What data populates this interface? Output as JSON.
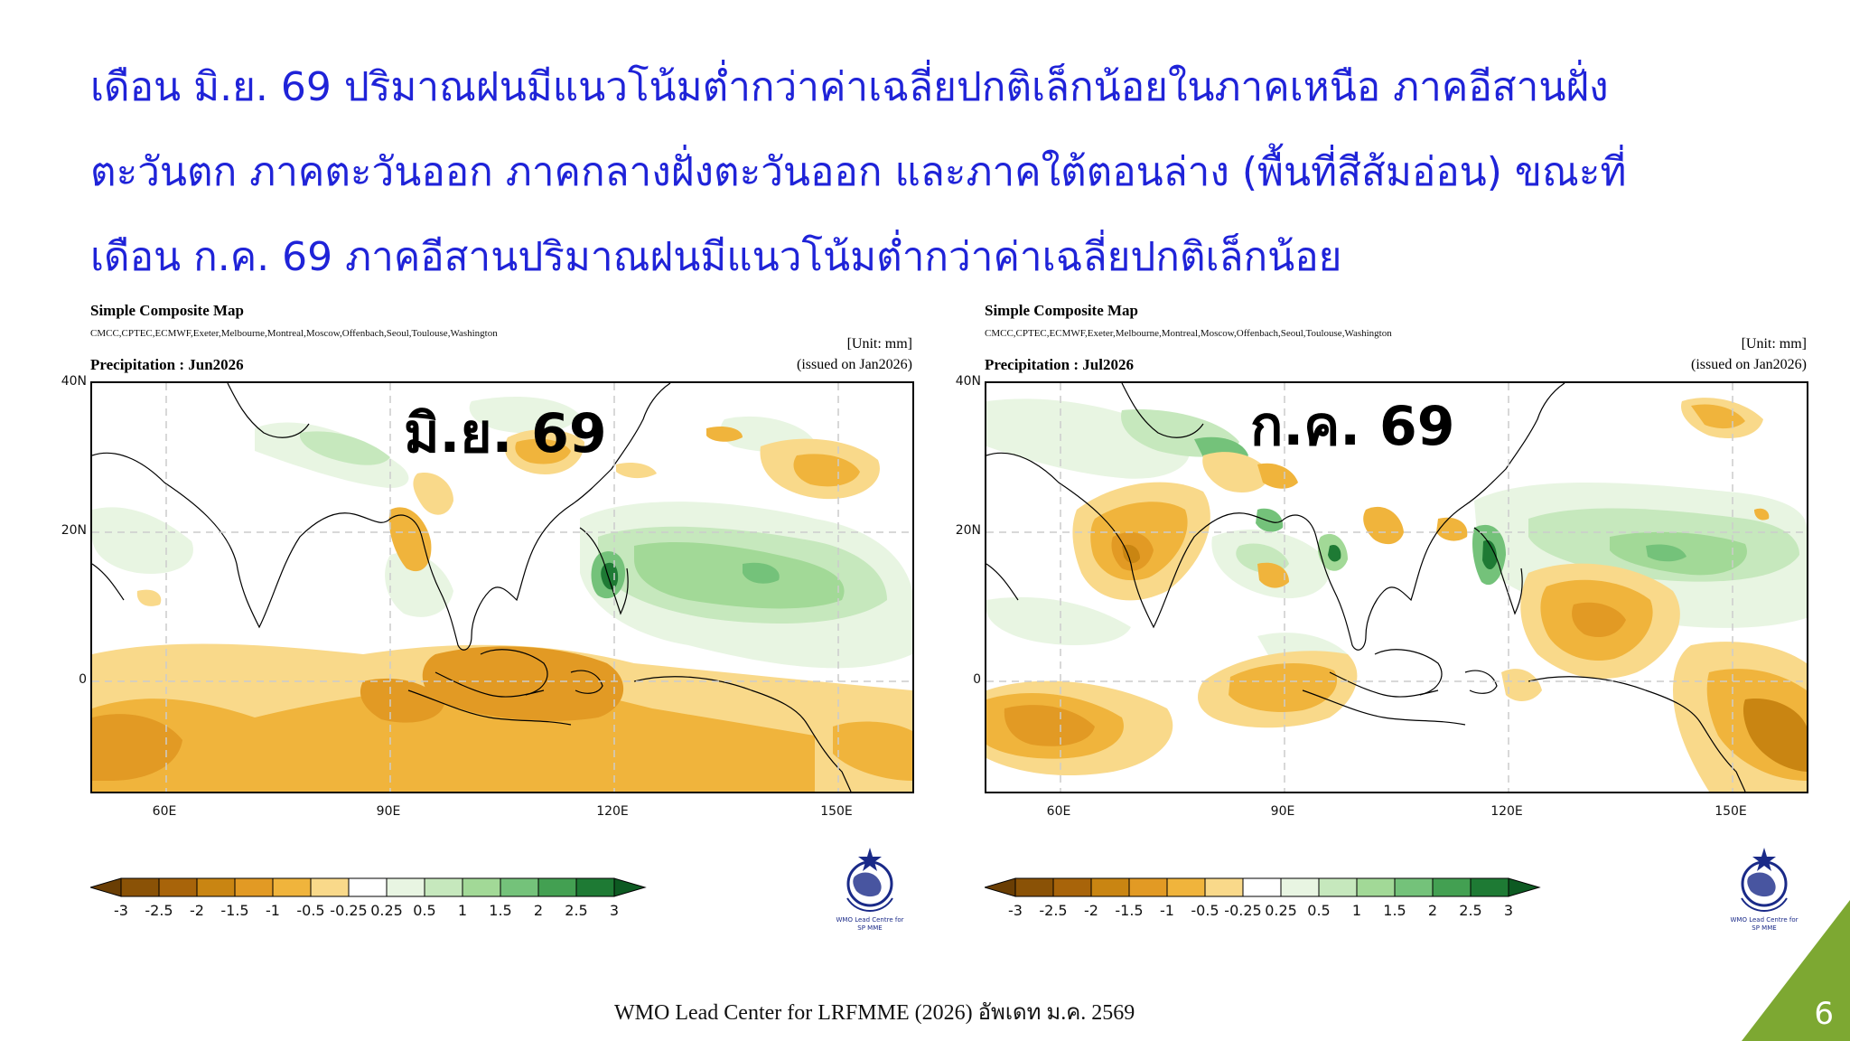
{
  "headline": {
    "lines": [
      "เดือน มิ.ย. 69 ปริมาณฝนมีแนวโน้มต่ำกว่าค่าเฉลี่ยปกติเล็กน้อยในภาคเหนือ ภาคอีสานฝั่ง",
      "ตะวันตก ภาคตะวันออก ภาคกลางฝั่งตะวันออก และภาคใต้ตอนล่าง (พื้นที่สีส้มอ่อน) ขณะที่",
      "เดือน ก.ค. 69 ภาคอีสานปริมาณฝนมีแนวโน้มต่ำกว่าค่าเฉลี่ยปกติเล็กน้อย"
    ],
    "color": "#1f23d8"
  },
  "maps": [
    {
      "title": "Simple Composite Map",
      "models": "CMCC,CPTEC,ECMWF,Exeter,Melbourne,Montreal,Moscow,Offenbach,Seoul,Toulouse,Washington",
      "unit": "[Unit: mm]",
      "product": "Precipitation : Jun2026",
      "issued": "(issued on Jan2026)",
      "month_label": "มิ.ย. 69",
      "lat_ticks": [
        "40N",
        "20N",
        "0"
      ],
      "lon_ticks": [
        "60E",
        "90E",
        "120E",
        "150E"
      ]
    },
    {
      "title": "Simple Composite Map",
      "models": "CMCC,CPTEC,ECMWF,Exeter,Melbourne,Montreal,Moscow,Offenbach,Seoul,Toulouse,Washington",
      "unit": "[Unit: mm]",
      "product": "Precipitation : Jul2026",
      "issued": "(issued on Jan2026)",
      "month_label": "ก.ค. 69",
      "lat_ticks": [
        "40N",
        "20N",
        "0"
      ],
      "lon_ticks": [
        "60E",
        "90E",
        "120E",
        "150E"
      ]
    }
  ],
  "colorbar": {
    "labels": [
      "-3",
      "-2.5",
      "-2",
      "-1.5",
      "-1",
      "-0.5",
      "-0.25",
      "0.25",
      "0.5",
      "1",
      "1.5",
      "2",
      "2.5",
      "3"
    ],
    "colors": [
      "#8a5206",
      "#a8640a",
      "#c98512",
      "#e29a24",
      "#f0b43c",
      "#f9d98a",
      "#ffffff",
      "#e8f5e2",
      "#c6e8bd",
      "#a2d997",
      "#74c27a",
      "#43a052",
      "#1e7a34"
    ],
    "end_low": "#6a3e04",
    "end_high": "#0d5a22"
  },
  "logo_text": [
    "WMO Lead Centre for",
    "SP MME"
  ],
  "footer": "WMO Lead Center for LRFMME (2026) อัพเดท ม.ค. 2569",
  "page_number": "6",
  "accent_green": "#7da832"
}
